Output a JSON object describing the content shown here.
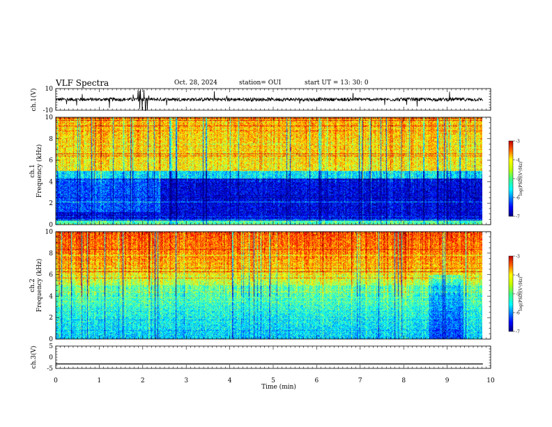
{
  "header": {
    "title": "VLF Spectra",
    "date": "Oct. 28, 2024",
    "station": "station= OUI",
    "start_ut": "start  UT =   13: 30: 0"
  },
  "chart_data": [
    {
      "type": "line",
      "panel": "ch1-waveform",
      "ylabel": "ch.1(V)",
      "ylim": [
        -10,
        10
      ],
      "yticks": [
        "10",
        "-10"
      ],
      "x_range": [
        0,
        10
      ],
      "trace_end_x": 9.82,
      "baseline": 0,
      "color": "#000000"
    },
    {
      "type": "heatmap",
      "panel": "ch1-spectrogram",
      "ylabel": "ch.1",
      "ylabel2": "Frequency (kHz)",
      "ylim": [
        0,
        10
      ],
      "yticks": [
        "0",
        "2",
        "4",
        "6",
        "8",
        "10"
      ],
      "x_range": [
        0,
        10
      ],
      "data_end_x": 9.82,
      "colorbar": {
        "label": "log(PSD)(V²/Hz)",
        "ticks": [
          "-3",
          "-4",
          "-5",
          "-6",
          "-7"
        ],
        "range": [
          -7,
          -3
        ]
      }
    },
    {
      "type": "heatmap",
      "panel": "ch2-spectrogram",
      "ylabel": "ch.2",
      "ylabel2": "Frequency (kHz)",
      "ylim": [
        0,
        10
      ],
      "yticks": [
        "0",
        "2",
        "4",
        "6",
        "8",
        "10"
      ],
      "x_range": [
        0,
        10
      ],
      "data_end_x": 9.82,
      "colorbar": {
        "label": "log(PSD)(V²/Hz)",
        "ticks": [
          "-3",
          "-4",
          "-5",
          "-6",
          "-7"
        ],
        "range": [
          -7,
          -3
        ]
      }
    },
    {
      "type": "line",
      "panel": "ch3-waveform",
      "ylabel": "ch.3(V)",
      "ylim": [
        -5,
        5
      ],
      "yticks": [
        "5",
        "0",
        "-5"
      ],
      "x_range": [
        0,
        10
      ],
      "trace_end_x": 9.82,
      "value": -3,
      "color": "#000000"
    }
  ],
  "x_axis": {
    "label": "Time  (min)",
    "ticks": [
      "0",
      "1",
      "2",
      "3",
      "4",
      "5",
      "6",
      "7",
      "8",
      "9",
      "10"
    ]
  }
}
